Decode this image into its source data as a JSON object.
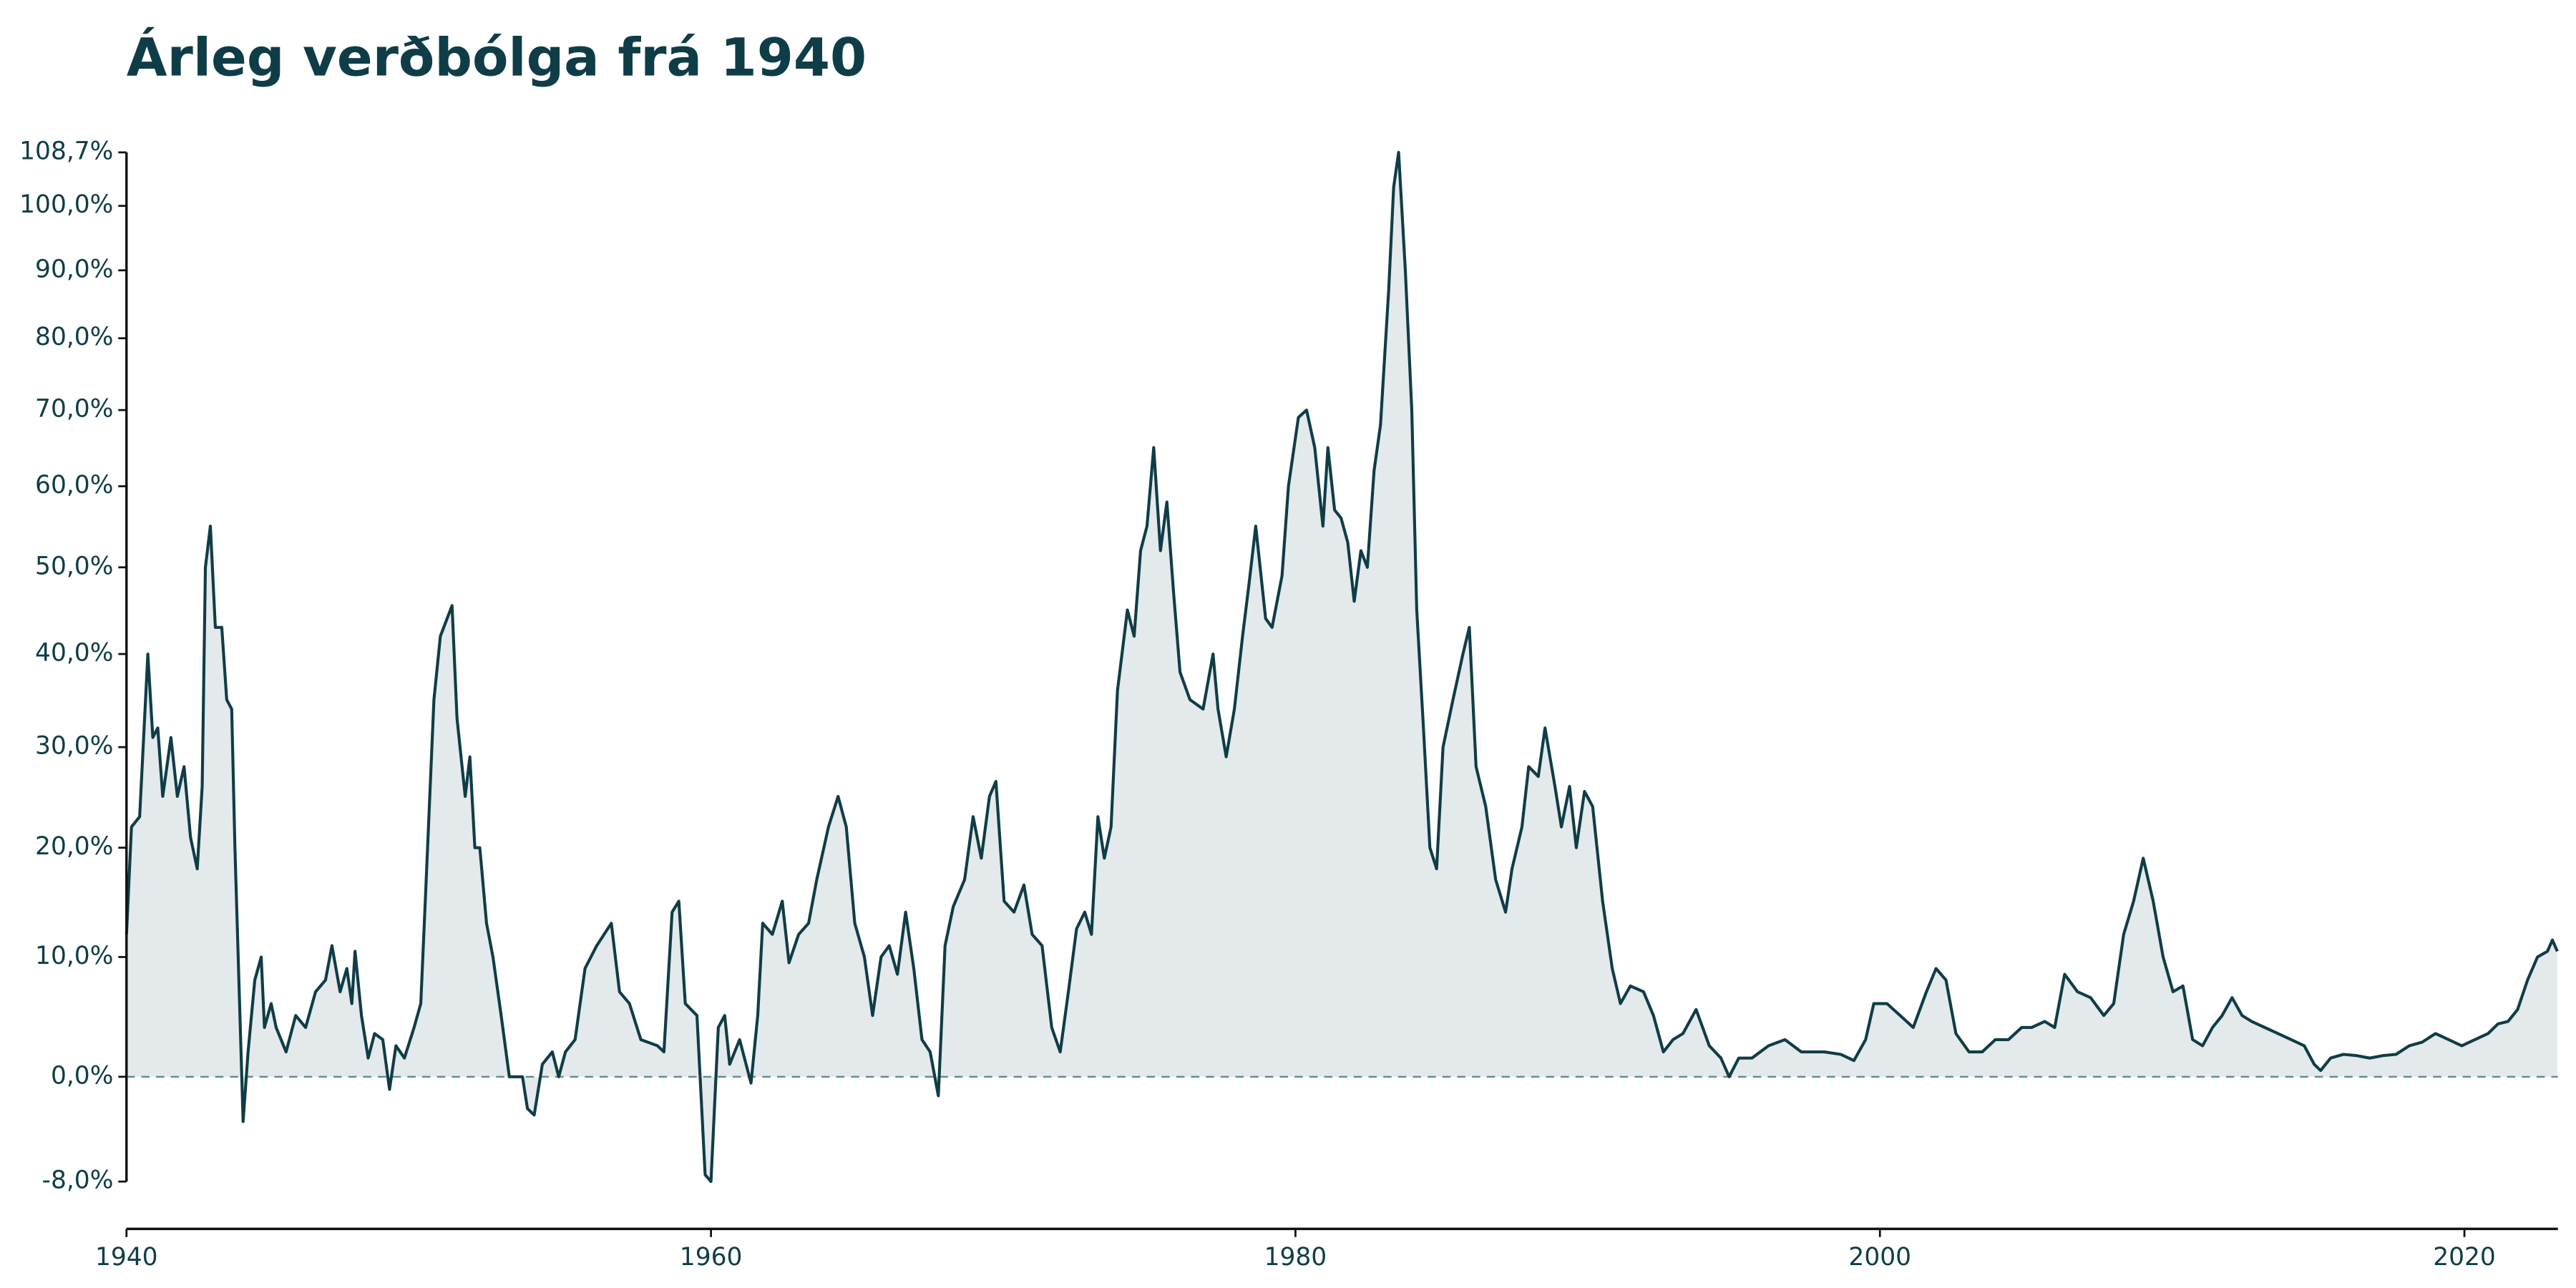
{
  "chart_data": {
    "type": "area",
    "title": "Árleg verðbólga frá 1940",
    "y_scale": "log-return",
    "color": "#0f3d47",
    "fill_color": "#e4e9eb",
    "zero_line": true,
    "xlim": [
      1940,
      2023.2
    ],
    "xticks": [
      1940,
      1960,
      1980,
      2000,
      2020
    ],
    "ylim": [
      -11.4,
      110
    ],
    "yticks": [
      {
        "value": -8,
        "label": "-8,0%"
      },
      {
        "value": 0,
        "label": "0,0%"
      },
      {
        "value": 10,
        "label": "10,0%"
      },
      {
        "value": 20,
        "label": "20,0%"
      },
      {
        "value": 30,
        "label": "30,0%"
      },
      {
        "value": 40,
        "label": "40,0%"
      },
      {
        "value": 50,
        "label": "50,0%"
      },
      {
        "value": 60,
        "label": "60,0%"
      },
      {
        "value": 70,
        "label": "70,0%"
      },
      {
        "value": 80,
        "label": "80,0%"
      },
      {
        "value": 90,
        "label": "90,0%"
      },
      {
        "value": 100,
        "label": "100,0%"
      },
      {
        "value": 108.7,
        "label": "108,7%"
      }
    ],
    "x": [
      1940.0,
      1940.17,
      1940.45,
      1940.73,
      1940.9,
      1941.07,
      1941.24,
      1941.52,
      1941.74,
      1941.97,
      1942.19,
      1942.42,
      1942.59,
      1942.7,
      1942.87,
      1943.04,
      1943.26,
      1943.43,
      1943.6,
      1943.71,
      1943.99,
      1944.16,
      1944.39,
      1944.61,
      1944.72,
      1944.95,
      1945.12,
      1945.46,
      1945.79,
      1946.13,
      1946.47,
      1946.81,
      1947.03,
      1947.31,
      1947.54,
      1947.71,
      1947.82,
      1948.04,
      1948.27,
      1948.49,
      1948.77,
      1949.0,
      1949.22,
      1949.51,
      1949.84,
      1950.07,
      1950.24,
      1950.52,
      1950.74,
      1950.97,
      1951.14,
      1951.31,
      1951.59,
      1951.75,
      1951.92,
      1952.09,
      1952.32,
      1952.54,
      1952.82,
      1953.1,
      1953.55,
      1953.72,
      1953.95,
      1954.23,
      1954.57,
      1954.79,
      1955.02,
      1955.35,
      1955.69,
      1956.09,
      1956.59,
      1956.87,
      1957.21,
      1957.6,
      1958.17,
      1958.39,
      1958.67,
      1958.9,
      1959.12,
      1959.52,
      1959.8,
      1960.0,
      1960.25,
      1960.47,
      1960.64,
      1960.98,
      1961.37,
      1961.6,
      1961.77,
      1962.1,
      1962.44,
      1962.67,
      1963.0,
      1963.34,
      1963.62,
      1964.02,
      1964.35,
      1964.63,
      1964.92,
      1965.25,
      1965.53,
      1965.82,
      1966.1,
      1966.38,
      1966.66,
      1966.94,
      1967.22,
      1967.5,
      1967.78,
      1968.01,
      1968.29,
      1968.68,
      1968.97,
      1969.25,
      1969.53,
      1969.75,
      1970.03,
      1970.37,
      1970.71,
      1970.99,
      1971.33,
      1971.66,
      1971.95,
      1972.23,
      1972.51,
      1972.79,
      1973.02,
      1973.24,
      1973.46,
      1973.69,
      1973.91,
      1974.25,
      1974.48,
      1974.7,
      1974.92,
      1975.15,
      1975.38,
      1975.6,
      1975.83,
      1976.05,
      1976.39,
      1976.84,
      1977.18,
      1977.35,
      1977.63,
      1977.91,
      1978.19,
      1978.41,
      1978.64,
      1978.98,
      1979.2,
      1979.54,
      1979.76,
      1980.1,
      1980.38,
      1980.66,
      1980.94,
      1981.11,
      1981.34,
      1981.56,
      1981.79,
      1982.01,
      1982.24,
      1982.46,
      1982.69,
      1982.91,
      1983.19,
      1983.36,
      1983.53,
      1983.76,
      1983.98,
      1984.15,
      1984.38,
      1984.6,
      1984.83,
      1985.05,
      1985.39,
      1985.73,
      1985.95,
      1986.18,
      1986.51,
      1986.85,
      1987.19,
      1987.41,
      1987.75,
      1987.98,
      1988.31,
      1988.54,
      1988.88,
      1989.1,
      1989.38,
      1989.61,
      1989.89,
      1990.17,
      1990.51,
      1990.84,
      1991.12,
      1991.46,
      1991.91,
      1992.25,
      1992.59,
      1992.92,
      1993.26,
      1993.71,
      1994.16,
      1994.56,
      1994.84,
      1995.17,
      1995.62,
      1996.19,
      1996.75,
      1997.31,
      1998.1,
      1998.66,
      1999.11,
      1999.51,
      1999.79,
      2000.24,
      2000.69,
      2001.14,
      2001.59,
      2001.92,
      2002.26,
      2002.6,
      2003.05,
      2003.5,
      2003.95,
      2004.4,
      2004.85,
      2005.19,
      2005.64,
      2005.98,
      2006.32,
      2006.76,
      2007.21,
      2007.66,
      2008.0,
      2008.34,
      2008.68,
      2009.01,
      2009.35,
      2009.69,
      2010.03,
      2010.37,
      2010.7,
      2011.04,
      2011.38,
      2011.71,
      2012.05,
      2012.39,
      2012.72,
      2013.17,
      2013.62,
      2014.07,
      2014.52,
      2014.86,
      2015.08,
      2015.42,
      2015.86,
      2016.31,
      2016.76,
      2017.21,
      2017.66,
      2018.11,
      2018.56,
      2019.01,
      2019.46,
      2019.91,
      2020.36,
      2020.81,
      2021.15,
      2021.49,
      2021.82,
      2022.16,
      2022.5,
      2022.84,
      2023.01,
      2023.18
    ],
    "values": [
      12,
      22,
      23,
      40,
      31,
      32,
      25,
      31,
      25,
      28,
      21,
      18,
      26,
      50,
      55,
      43,
      43,
      35,
      34,
      20,
      -3.5,
      2,
      8,
      10,
      4,
      6,
      4,
      2,
      5,
      4,
      7,
      8,
      11,
      7,
      9,
      6,
      10.5,
      5,
      1.5,
      3.5,
      3,
      -1,
      2.5,
      1.5,
      4,
      6,
      16,
      35,
      42,
      44,
      45.5,
      33,
      25,
      29,
      20,
      20,
      13,
      10,
      5,
      0,
      0,
      -2.5,
      -3,
      1,
      2,
      0,
      2,
      3,
      9,
      11,
      13,
      7,
      6,
      3,
      2.5,
      2,
      14,
      15,
      6,
      5,
      -7.5,
      -8,
      4,
      5,
      1,
      3,
      -0.5,
      5,
      13,
      12,
      15,
      9.5,
      12,
      13,
      17,
      22,
      25,
      22,
      13,
      10,
      5,
      10,
      11,
      8.5,
      14,
      9,
      3,
      2,
      -1.5,
      11,
      14.5,
      17,
      23,
      19,
      25,
      26.5,
      15,
      14,
      16.5,
      12,
      11,
      4,
      2,
      7,
      12.5,
      14,
      12,
      23,
      19,
      22,
      36,
      45,
      42,
      52,
      55,
      65,
      52,
      58,
      47,
      38,
      35,
      34,
      40,
      34,
      29,
      34,
      42,
      48,
      55,
      44,
      43,
      49,
      60,
      69,
      70,
      65,
      55,
      65,
      57,
      56,
      53,
      46,
      52,
      50,
      62,
      68,
      87,
      103,
      108.7,
      90,
      70,
      45,
      32,
      20,
      18,
      30,
      35,
      40,
      43,
      28,
      24,
      17,
      14,
      18,
      22,
      28,
      27,
      32,
      26,
      22,
      26,
      20,
      25.5,
      24,
      15,
      9,
      6,
      7.5,
      7,
      5,
      2,
      3,
      3.5,
      5.5,
      2.5,
      1.5,
      0,
      1.5,
      1.5,
      2.5,
      3,
      2,
      2,
      1.8,
      1.3,
      3,
      6,
      6,
      5,
      4,
      7,
      9,
      8,
      3.5,
      2,
      2,
      3,
      3,
      4,
      4,
      4.5,
      4,
      8.5,
      7,
      6.5,
      5,
      6,
      12,
      15,
      19,
      15,
      10,
      7,
      7.5,
      3,
      2.5,
      4,
      5,
      6.5,
      5,
      4.5,
      4,
      3.5,
      3,
      2.5,
      1,
      0.5,
      1.5,
      1.8,
      1.7,
      1.5,
      1.7,
      1.8,
      2.5,
      2.8,
      3.5,
      3,
      2.5,
      3,
      3.5,
      4.3,
      4.5,
      5.5,
      8,
      10,
      10.5,
      11.5,
      10.5
    ]
  }
}
